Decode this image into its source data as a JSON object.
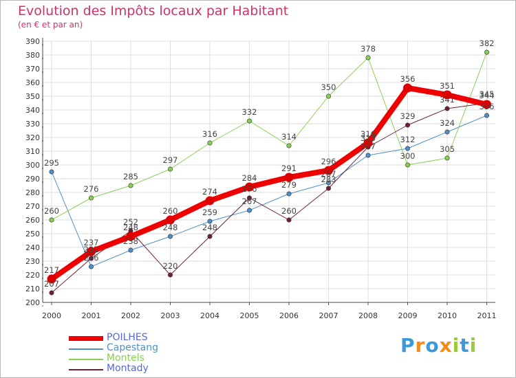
{
  "chart_data": {
    "type": "line",
    "title": "Evolution des Impôts locaux par Habitant",
    "subtitle": "(en € et par an)",
    "xlabel": "",
    "ylabel": "",
    "ylim": [
      200,
      390
    ],
    "ytick_step": 10,
    "grid": true,
    "legend_position": "bottom-left",
    "x": [
      "2000",
      "2001",
      "2002",
      "2003",
      "2004",
      "2005",
      "2006",
      "2007",
      "2008",
      "2009",
      "2010",
      "2011"
    ],
    "series": [
      {
        "name": "Capestang",
        "color": "#4f8fc8",
        "values": [
          295,
          226,
          238,
          248,
          259,
          267,
          279,
          287,
          307,
          312,
          324,
          336
        ],
        "width": 1
      },
      {
        "name": "Montels",
        "color": "#88d050",
        "values": [
          260,
          276,
          285,
          297,
          316,
          332,
          314,
          350,
          378,
          300,
          305,
          382
        ],
        "width": 1
      },
      {
        "name": "Montady",
        "color": "#702030",
        "values": [
          207,
          232,
          252,
          220,
          248,
          276,
          260,
          283,
          313,
          329,
          341,
          345
        ],
        "width": 1
      },
      {
        "name": "POILHES",
        "color": "#ee0000",
        "values": [
          217,
          237,
          248,
          260,
          274,
          284,
          291,
          296,
          316,
          356,
          351,
          344
        ],
        "width": 8
      }
    ],
    "legend_order": [
      "POILHES",
      "Capestang",
      "Montels",
      "Montady"
    ]
  },
  "legend": {
    "poilhes": "POILHES",
    "capestang": "Capestang",
    "montels": "Montels",
    "montady": "Montady"
  },
  "brand": {
    "letters": [
      "P",
      "r",
      "o",
      "x",
      "i",
      "t",
      "i"
    ],
    "colors": [
      "#3a9ad9",
      "#f28c1e",
      "#3a9ad9",
      "#f28c1e",
      "#9acd32",
      "#3a9ad9",
      "#9acd32"
    ]
  }
}
